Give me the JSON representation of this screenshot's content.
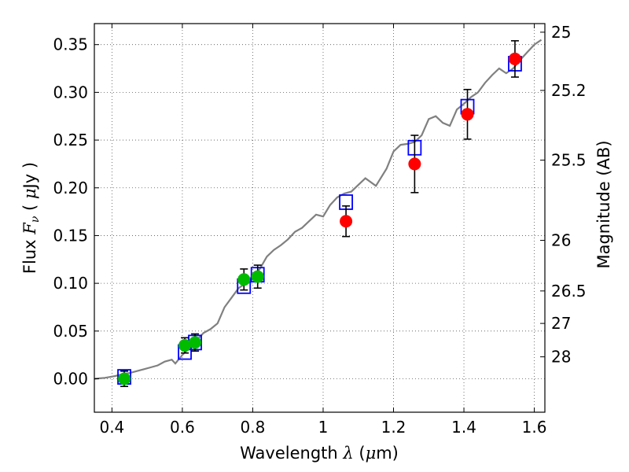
{
  "chart_data": {
    "type": "scatter",
    "xlabel": {
      "pre": "Wavelength  ",
      "sym": "λ",
      "post": " (",
      "mu": "μ",
      "unit": "m)"
    },
    "ylabel": {
      "pre": "Flux  ",
      "F": "F",
      "nu": "ν",
      "mid": "  (  ",
      "mu": "μ",
      "post": "Jy  )"
    },
    "y2label": "Magnitude (AB)",
    "xlim": [
      0.35,
      1.63
    ],
    "ylim": [
      -0.035,
      0.372
    ],
    "grid": true,
    "x_ticks": [
      {
        "v": 0.4,
        "label": "0.4"
      },
      {
        "v": 0.6,
        "label": "0.6"
      },
      {
        "v": 0.8,
        "label": "0.8"
      },
      {
        "v": 1.0,
        "label": "1"
      },
      {
        "v": 1.2,
        "label": "1.2"
      },
      {
        "v": 1.4,
        "label": "1.4"
      },
      {
        "v": 1.6,
        "label": "1.6"
      }
    ],
    "y_ticks": [
      {
        "v": 0.0,
        "label": "0.00"
      },
      {
        "v": 0.05,
        "label": "0.05"
      },
      {
        "v": 0.1,
        "label": "0.10"
      },
      {
        "v": 0.15,
        "label": "0.15"
      },
      {
        "v": 0.2,
        "label": "0.20"
      },
      {
        "v": 0.25,
        "label": "0.25"
      },
      {
        "v": 0.3,
        "label": "0.30"
      },
      {
        "v": 0.35,
        "label": "0.35"
      }
    ],
    "right_ticks": [
      {
        "flux": 0.363,
        "label": "25"
      },
      {
        "flux": 0.302,
        "label": "25.2"
      },
      {
        "flux": 0.229,
        "label": "25.5"
      },
      {
        "flux": 0.145,
        "label": "26"
      },
      {
        "flux": 0.092,
        "label": "26.5"
      },
      {
        "flux": 0.058,
        "label": "27"
      },
      {
        "flux": 0.023,
        "label": "28"
      }
    ],
    "colors": {
      "model": "#808080",
      "green": "#00bb00",
      "red": "#ff0000",
      "box": "#0000ff",
      "error": "#000000"
    },
    "model_spectrum": {
      "name": "",
      "points": [
        [
          0.35,
          0.0
        ],
        [
          0.38,
          0.001
        ],
        [
          0.41,
          0.003
        ],
        [
          0.43,
          0.005
        ],
        [
          0.45,
          0.006
        ],
        [
          0.47,
          0.008
        ],
        [
          0.49,
          0.01
        ],
        [
          0.51,
          0.012
        ],
        [
          0.53,
          0.014
        ],
        [
          0.55,
          0.018
        ],
        [
          0.57,
          0.02
        ],
        [
          0.58,
          0.016
        ],
        [
          0.6,
          0.025
        ],
        [
          0.62,
          0.032
        ],
        [
          0.64,
          0.04
        ],
        [
          0.66,
          0.048
        ],
        [
          0.68,
          0.052
        ],
        [
          0.7,
          0.058
        ],
        [
          0.72,
          0.075
        ],
        [
          0.74,
          0.085
        ],
        [
          0.76,
          0.095
        ],
        [
          0.78,
          0.1
        ],
        [
          0.8,
          0.108
        ],
        [
          0.82,
          0.115
        ],
        [
          0.84,
          0.128
        ],
        [
          0.86,
          0.135
        ],
        [
          0.88,
          0.14
        ],
        [
          0.9,
          0.146
        ],
        [
          0.92,
          0.154
        ],
        [
          0.94,
          0.158
        ],
        [
          0.96,
          0.165
        ],
        [
          0.98,
          0.172
        ],
        [
          1.0,
          0.17
        ],
        [
          1.02,
          0.182
        ],
        [
          1.04,
          0.19
        ],
        [
          1.06,
          0.194
        ],
        [
          1.08,
          0.196
        ],
        [
          1.1,
          0.203
        ],
        [
          1.12,
          0.21
        ],
        [
          1.15,
          0.202
        ],
        [
          1.18,
          0.22
        ],
        [
          1.2,
          0.238
        ],
        [
          1.22,
          0.245
        ],
        [
          1.24,
          0.246
        ],
        [
          1.26,
          0.248
        ],
        [
          1.28,
          0.255
        ],
        [
          1.3,
          0.272
        ],
        [
          1.32,
          0.275
        ],
        [
          1.34,
          0.268
        ],
        [
          1.36,
          0.265
        ],
        [
          1.38,
          0.282
        ],
        [
          1.4,
          0.288
        ],
        [
          1.42,
          0.295
        ],
        [
          1.44,
          0.3
        ],
        [
          1.46,
          0.31
        ],
        [
          1.48,
          0.318
        ],
        [
          1.5,
          0.325
        ],
        [
          1.52,
          0.32
        ],
        [
          1.54,
          0.325
        ],
        [
          1.56,
          0.334
        ],
        [
          1.58,
          0.342
        ],
        [
          1.6,
          0.35
        ],
        [
          1.62,
          0.355
        ]
      ]
    },
    "series": [
      {
        "marker": "square",
        "points": [
          {
            "x": 0.435,
            "y": 0.002
          },
          {
            "x": 0.607,
            "y": 0.028
          },
          {
            "x": 0.636,
            "y": 0.038
          },
          {
            "x": 0.775,
            "y": 0.097
          },
          {
            "x": 0.814,
            "y": 0.109
          },
          {
            "x": 1.065,
            "y": 0.185
          },
          {
            "x": 1.26,
            "y": 0.242
          },
          {
            "x": 1.41,
            "y": 0.285
          },
          {
            "x": 1.545,
            "y": 0.33
          }
        ]
      },
      {
        "marker": "circle-green",
        "points": [
          {
            "x": 0.435,
            "y": 0.0,
            "err": 0.008
          },
          {
            "x": 0.607,
            "y": 0.035,
            "err": 0.008
          },
          {
            "x": 0.636,
            "y": 0.038,
            "err": 0.009
          },
          {
            "x": 0.775,
            "y": 0.104,
            "err": 0.011
          },
          {
            "x": 0.814,
            "y": 0.107,
            "err": 0.012
          }
        ]
      },
      {
        "marker": "circle-red",
        "points": [
          {
            "x": 1.065,
            "y": 0.165,
            "err": 0.016
          },
          {
            "x": 1.26,
            "y": 0.225,
            "err": 0.03
          },
          {
            "x": 1.41,
            "y": 0.277,
            "err": 0.026
          },
          {
            "x": 1.545,
            "y": 0.335,
            "err": 0.019
          }
        ]
      }
    ]
  }
}
